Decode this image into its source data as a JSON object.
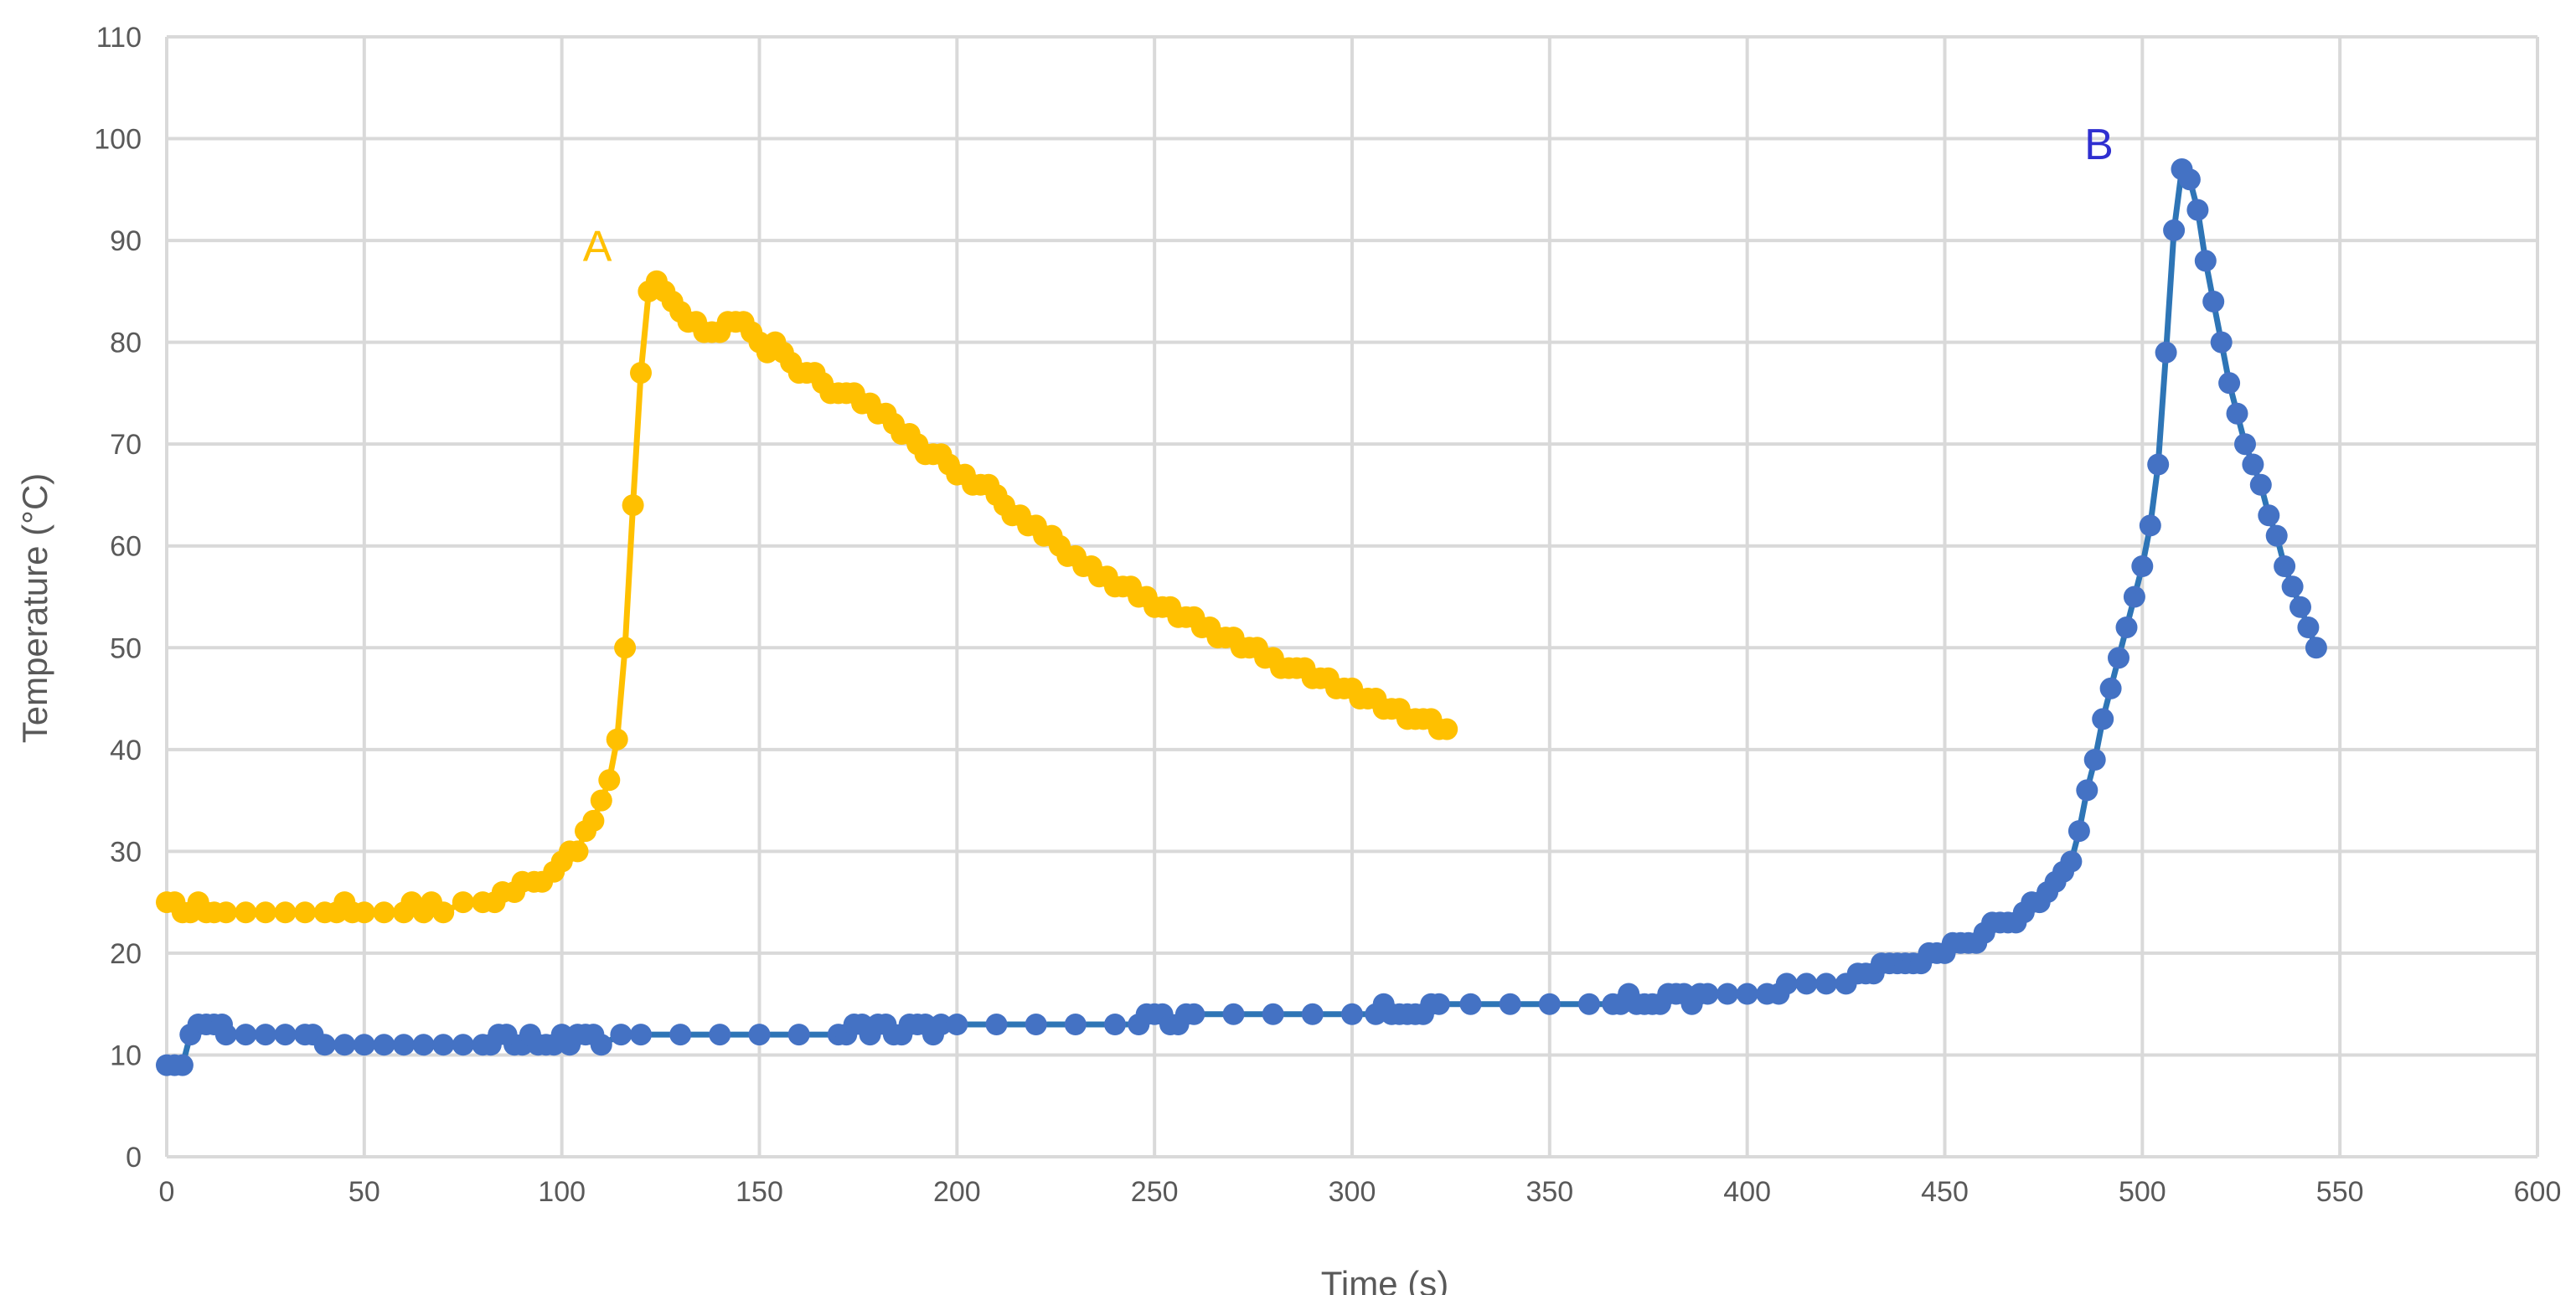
{
  "chart_data": {
    "type": "line",
    "title": "",
    "xlabel": "Time (s)",
    "ylabel": "Temperature (°C)",
    "xlim": [
      0,
      600
    ],
    "ylim": [
      0,
      110
    ],
    "xticks": [
      0,
      50,
      100,
      150,
      200,
      250,
      300,
      350,
      400,
      450,
      500,
      550,
      600
    ],
    "yticks": [
      0,
      10,
      20,
      30,
      40,
      50,
      60,
      70,
      80,
      90,
      100,
      110
    ],
    "grid": true,
    "legend": "none",
    "colors": {
      "A": "#FFC000",
      "B_markers": "#4472C4",
      "B_line": "#2E75B6",
      "B_label": "#2F2FD0",
      "grid": "#D9D9D9",
      "axis_text": "#595959"
    },
    "annotations": [
      {
        "text": "A",
        "x": 109,
        "y": 88,
        "color": "#FFC000"
      },
      {
        "text": "B",
        "x": 489,
        "y": 98,
        "color": "#2F2FD0"
      }
    ],
    "series": [
      {
        "label": "A",
        "x": [
          0,
          2,
          4,
          6,
          8,
          10,
          12,
          15,
          20,
          25,
          30,
          35,
          40,
          43,
          45,
          47,
          50,
          55,
          60,
          62,
          65,
          67,
          70,
          75,
          80,
          83,
          85,
          88,
          90,
          93,
          95,
          98,
          100,
          102,
          104,
          106,
          108,
          110,
          112,
          114,
          116,
          118,
          120,
          122,
          124,
          126,
          128,
          130,
          132,
          134,
          136,
          138,
          140,
          142,
          144,
          146,
          148,
          150,
          152,
          154,
          156,
          158,
          160,
          162,
          164,
          166,
          168,
          170,
          172,
          174,
          176,
          178,
          180,
          182,
          184,
          186,
          188,
          190,
          192,
          194,
          196,
          198,
          200,
          202,
          204,
          206,
          208,
          210,
          212,
          214,
          216,
          218,
          220,
          222,
          224,
          226,
          228,
          230,
          232,
          234,
          236,
          238,
          240,
          242,
          244,
          246,
          248,
          250,
          252,
          254,
          256,
          258,
          260,
          262,
          264,
          266,
          268,
          270,
          272,
          274,
          276,
          278,
          280,
          282,
          284,
          286,
          288,
          290,
          292,
          294,
          296,
          298,
          300,
          302,
          304,
          306,
          308,
          310,
          312,
          314,
          316,
          318,
          320,
          322,
          324
        ],
        "y": [
          25,
          25,
          24,
          24,
          25,
          24,
          24,
          24,
          24,
          24,
          24,
          24,
          24,
          24,
          25,
          24,
          24,
          24,
          24,
          25,
          24,
          25,
          24,
          25,
          25,
          25,
          26,
          26,
          27,
          27,
          27,
          28,
          29,
          30,
          30,
          32,
          33,
          35,
          37,
          41,
          50,
          64,
          77,
          85,
          86,
          85,
          84,
          83,
          82,
          82,
          81,
          81,
          81,
          82,
          82,
          82,
          81,
          80,
          79,
          80,
          79,
          78,
          77,
          77,
          77,
          76,
          75,
          75,
          75,
          75,
          74,
          74,
          73,
          73,
          72,
          71,
          71,
          70,
          69,
          69,
          69,
          68,
          67,
          67,
          66,
          66,
          66,
          65,
          64,
          63,
          63,
          62,
          62,
          61,
          61,
          60,
          59,
          59,
          58,
          58,
          57,
          57,
          56,
          56,
          56,
          55,
          55,
          54,
          54,
          54,
          53,
          53,
          53,
          52,
          52,
          51,
          51,
          51,
          50,
          50,
          50,
          49,
          49,
          48,
          48,
          48,
          48,
          47,
          47,
          47,
          46,
          46,
          46,
          45,
          45,
          45,
          44,
          44,
          44,
          43,
          43,
          43,
          43,
          42,
          42
        ]
      },
      {
        "label": "B",
        "x": [
          0,
          2,
          4,
          6,
          8,
          10,
          12,
          14,
          15,
          20,
          25,
          30,
          35,
          37,
          40,
          45,
          50,
          55,
          60,
          65,
          70,
          75,
          80,
          82,
          84,
          86,
          88,
          90,
          92,
          94,
          96,
          98,
          100,
          102,
          104,
          106,
          108,
          110,
          115,
          120,
          130,
          140,
          150,
          160,
          170,
          172,
          174,
          176,
          178,
          180,
          182,
          184,
          186,
          188,
          190,
          192,
          194,
          196,
          200,
          210,
          220,
          230,
          240,
          246,
          248,
          250,
          252,
          254,
          256,
          258,
          260,
          270,
          280,
          290,
          300,
          306,
          308,
          310,
          312,
          314,
          316,
          318,
          320,
          322,
          330,
          340,
          350,
          360,
          366,
          368,
          370,
          372,
          374,
          376,
          378,
          380,
          382,
          384,
          386,
          388,
          390,
          395,
          400,
          405,
          408,
          410,
          415,
          420,
          425,
          428,
          430,
          432,
          434,
          436,
          438,
          440,
          442,
          444,
          446,
          448,
          450,
          452,
          454,
          456,
          458,
          460,
          462,
          464,
          466,
          468,
          470,
          472,
          474,
          476,
          478,
          480,
          482,
          484,
          486,
          488,
          490,
          492,
          494,
          496,
          498,
          500,
          502,
          504,
          506,
          508,
          510,
          512,
          514,
          516,
          518,
          520,
          522,
          524,
          526,
          528,
          530,
          532,
          534,
          536,
          538,
          540,
          542,
          544
        ],
        "y": [
          9,
          9,
          9,
          12,
          13,
          13,
          13,
          13,
          12,
          12,
          12,
          12,
          12,
          12,
          11,
          11,
          11,
          11,
          11,
          11,
          11,
          11,
          11,
          11,
          12,
          12,
          11,
          11,
          12,
          11,
          11,
          11,
          12,
          11,
          12,
          12,
          12,
          11,
          12,
          12,
          12,
          12,
          12,
          12,
          12,
          12,
          13,
          13,
          12,
          13,
          13,
          12,
          12,
          13,
          13,
          13,
          12,
          13,
          13,
          13,
          13,
          13,
          13,
          13,
          14,
          14,
          14,
          13,
          13,
          14,
          14,
          14,
          14,
          14,
          14,
          14,
          15,
          14,
          14,
          14,
          14,
          14,
          15,
          15,
          15,
          15,
          15,
          15,
          15,
          15,
          16,
          15,
          15,
          15,
          15,
          16,
          16,
          16,
          15,
          16,
          16,
          16,
          16,
          16,
          16,
          17,
          17,
          17,
          17,
          18,
          18,
          18,
          19,
          19,
          19,
          19,
          19,
          19,
          20,
          20,
          20,
          21,
          21,
          21,
          21,
          22,
          23,
          23,
          23,
          23,
          24,
          25,
          25,
          26,
          27,
          28,
          29,
          32,
          36,
          39,
          43,
          46,
          49,
          52,
          55,
          58,
          62,
          68,
          79,
          91,
          97,
          96,
          93,
          88,
          84,
          80,
          76,
          73,
          70,
          68,
          66,
          63,
          61,
          58,
          56,
          54,
          52,
          50
        ]
      }
    ]
  }
}
